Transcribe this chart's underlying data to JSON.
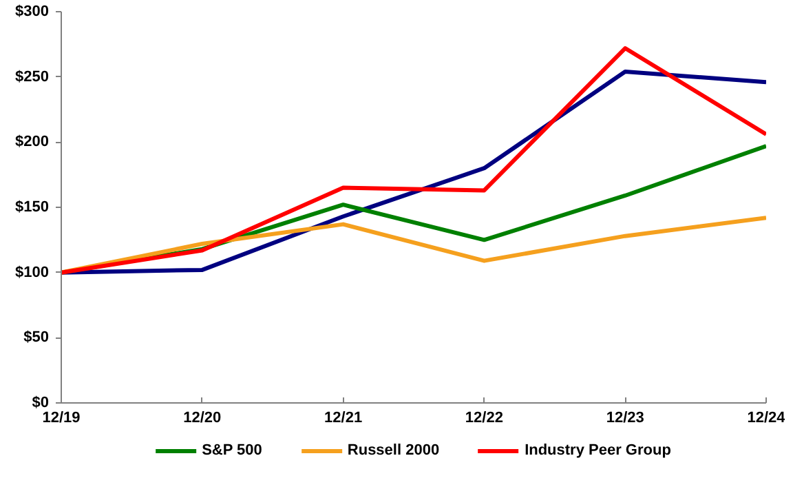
{
  "chart_data": {
    "type": "line",
    "categories": [
      "12/19",
      "12/20",
      "12/21",
      "12/22",
      "12/23",
      "12/24"
    ],
    "series": [
      {
        "color": "#000080",
        "values": [
          100,
          102,
          143,
          180,
          254,
          246
        ]
      },
      {
        "name": "S&P 500",
        "color": "#008000",
        "values": [
          100,
          118,
          152,
          125,
          159,
          197
        ]
      },
      {
        "name": "Russell 2000",
        "color": "#f5a01e",
        "values": [
          100,
          122,
          137,
          109,
          128,
          142
        ]
      },
      {
        "name": "Industry Peer Group",
        "color": "#ff0000",
        "values": [
          100,
          117,
          165,
          163,
          272,
          206
        ]
      }
    ],
    "ylim": [
      0,
      300
    ],
    "yticks": [
      {
        "value": 0,
        "label": "$0"
      },
      {
        "value": 50,
        "label": "$50"
      },
      {
        "value": 100,
        "label": "$100"
      },
      {
        "value": 150,
        "label": "$150"
      },
      {
        "value": 200,
        "label": "$200"
      },
      {
        "value": 250,
        "label": "$250"
      },
      {
        "value": 300,
        "label": "$300"
      }
    ],
    "grid": false,
    "legend": "bottom",
    "marker": "none",
    "line_style": "solid"
  }
}
